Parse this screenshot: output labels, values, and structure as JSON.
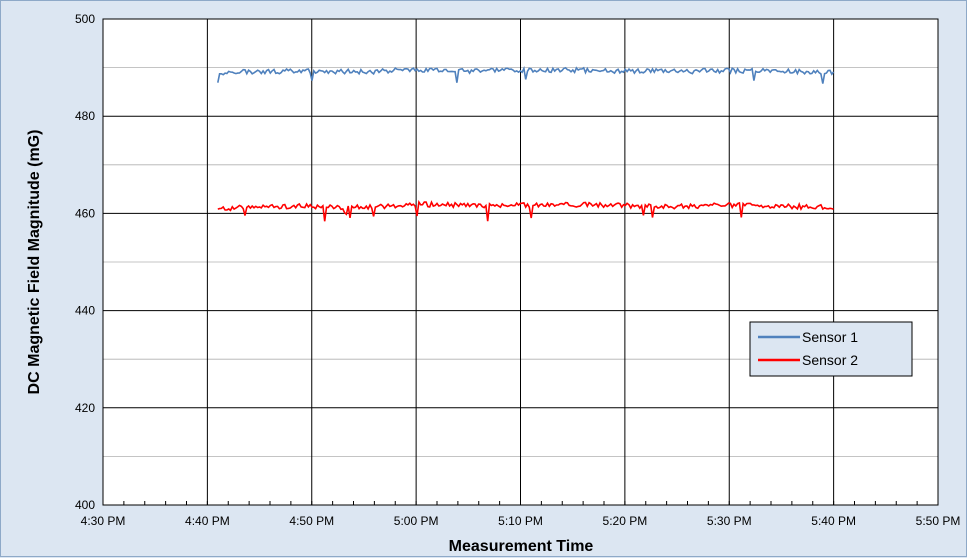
{
  "chart_data": {
    "type": "line",
    "xlabel": "Measurement Time",
    "ylabel": "DC Magnetic Field Magnitude (mG)",
    "ylim": [
      400,
      500
    ],
    "yticks": [
      400,
      420,
      440,
      460,
      480,
      500
    ],
    "xlim": [
      "4:30 PM",
      "5:50 PM"
    ],
    "xticks": [
      "4:30 PM",
      "4:40 PM",
      "4:50 PM",
      "5:00 PM",
      "5:10 PM",
      "5:20 PM",
      "5:30 PM",
      "5:40 PM",
      "5:50 PM"
    ],
    "grid": true,
    "legend_position": "right-middle",
    "x": [
      "4:41 PM",
      "4:45 PM",
      "4:50 PM",
      "4:55 PM",
      "5:00 PM",
      "5:05 PM",
      "5:10 PM",
      "5:15 PM",
      "5:20 PM",
      "5:25 PM",
      "5:30 PM",
      "5:35 PM",
      "5:40 PM"
    ],
    "series": [
      {
        "name": "Sensor 1",
        "color": "#4f81bd",
        "values": [
          489,
          489.2,
          489.3,
          489.1,
          489.6,
          489.3,
          489.4,
          489.5,
          489.3,
          489.2,
          489.4,
          489.3,
          489
        ]
      },
      {
        "name": "Sensor 2",
        "color": "#ff0000",
        "values": [
          461,
          461.3,
          461.5,
          461.2,
          461.9,
          461.6,
          461.7,
          461.8,
          461.6,
          461.4,
          461.7,
          461.5,
          461.2
        ]
      }
    ]
  }
}
